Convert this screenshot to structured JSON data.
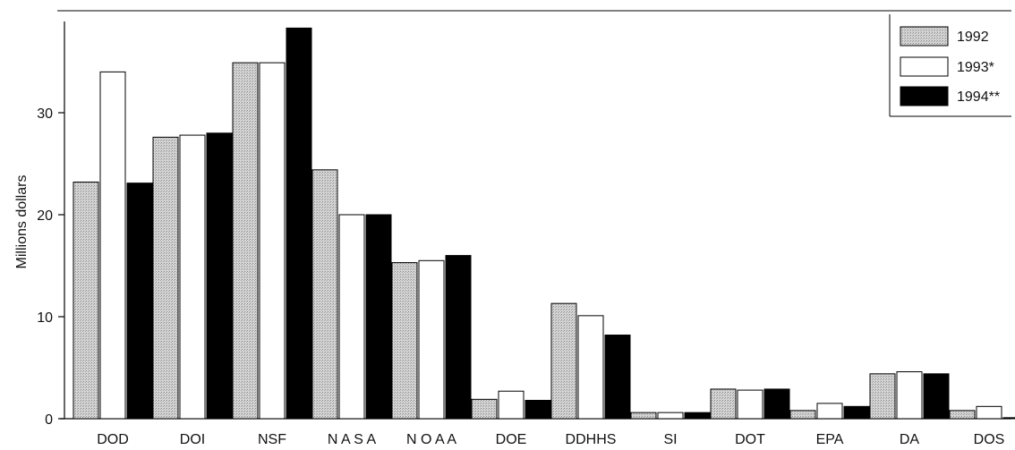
{
  "chart_data": {
    "type": "bar",
    "title": "",
    "xlabel": "",
    "ylabel": "Millions dollars",
    "ylim": [
      0,
      38.5
    ],
    "yticks": [
      0,
      10,
      20,
      30
    ],
    "grid": false,
    "legend_position": "top-right",
    "categories": [
      "DOD",
      "DOI",
      "NSF",
      "NASA",
      "NOAA",
      "DOE",
      "DDHHS",
      "SI",
      "DOT",
      "EPA",
      "DA",
      "DOS"
    ],
    "category_labels": [
      "DOD",
      "DOI",
      "NSF",
      "N A S A",
      "N O A A",
      "DOE",
      "DDHHS",
      "SI",
      "DOT",
      "EPA",
      "DA",
      "DOS"
    ],
    "series": [
      {
        "name": "1992",
        "values": [
          23.2,
          27.6,
          34.9,
          24.4,
          15.3,
          1.9,
          11.3,
          0.6,
          2.9,
          0.8,
          4.4,
          0.8
        ],
        "fill": "stipple"
      },
      {
        "name": "1993*",
        "values": [
          34.0,
          27.8,
          34.9,
          20.0,
          15.5,
          2.7,
          10.1,
          0.6,
          2.8,
          1.5,
          4.6,
          1.2
        ],
        "fill": "#ffffff"
      },
      {
        "name": "1994**",
        "values": [
          23.1,
          28.0,
          38.3,
          20.0,
          16.0,
          1.8,
          8.2,
          0.6,
          2.9,
          1.2,
          4.4,
          0.1
        ],
        "fill": "#000000"
      }
    ]
  }
}
